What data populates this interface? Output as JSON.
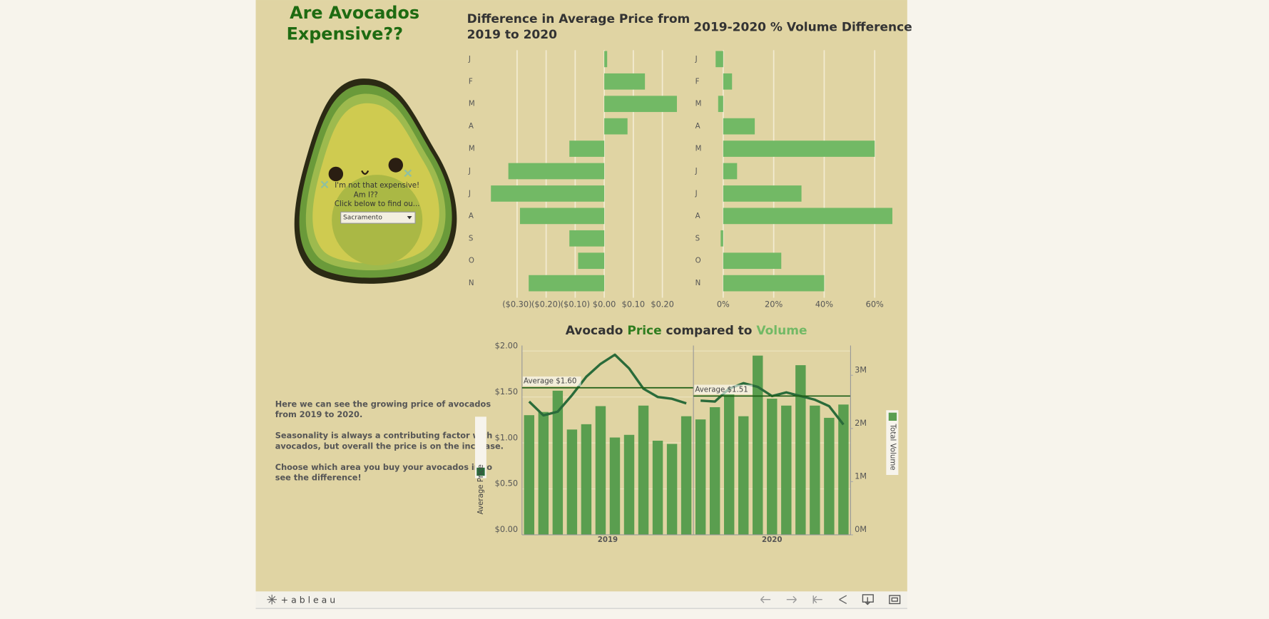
{
  "title": {
    "lines": [
      "Are Avocados",
      "Expensive??"
    ]
  },
  "avocado": {
    "speech": [
      "I'm not that expensive!",
      "Am I??",
      "Click below to find ou..."
    ],
    "dropdown": "Sacramento"
  },
  "notes": [
    [
      "Here we can see the growing price of avocados",
      "from 2019 to 2020."
    ],
    [
      "Seasonality is always a contributing factor with",
      "avocados, but overall the price is on the increase."
    ],
    [
      "Choose which area you buy your avocados in to",
      "see the difference!"
    ]
  ],
  "footer": {
    "logo": "+ a b l e a u"
  },
  "chart_data": [
    {
      "type": "bar",
      "orientation": "horizontal",
      "title": [
        "Difference in Average Price from",
        "2019 to 2020"
      ],
      "categories": [
        "J",
        "F",
        "M",
        "A",
        "M",
        "J",
        "J",
        "A",
        "S",
        "O",
        "N"
      ],
      "values": [
        0.01,
        0.14,
        0.25,
        0.08,
        -0.12,
        -0.33,
        -0.39,
        -0.29,
        -0.12,
        -0.09,
        -0.26
      ],
      "color": "#72b965",
      "grid": true,
      "xlim": [
        -0.4,
        0.26
      ],
      "xticks": [
        {
          "value": -0.3,
          "label": "($0.30)"
        },
        {
          "value": -0.2,
          "label": "($0.20)"
        },
        {
          "value": -0.1,
          "label": "($0.10)"
        },
        {
          "value": 0,
          "label": "$0.00"
        },
        {
          "value": 0.1,
          "label": "$0.10"
        },
        {
          "value": 0.2,
          "label": "$0.20"
        }
      ]
    },
    {
      "type": "bar",
      "orientation": "horizontal",
      "title": [
        "2019-2020 % Volume Difference"
      ],
      "categories": [
        "J",
        "F",
        "M",
        "A",
        "M",
        "J",
        "J",
        "A",
        "S",
        "O",
        "N"
      ],
      "values": [
        -3,
        3.5,
        -2,
        12.5,
        60,
        5.5,
        31,
        67,
        -1,
        23,
        40
      ],
      "color": "#72b965",
      "grid": true,
      "xlim": [
        -5,
        70
      ],
      "xticks": [
        {
          "value": 0,
          "label": "0%"
        },
        {
          "value": 20,
          "label": "20%"
        },
        {
          "value": 40,
          "label": "40%"
        },
        {
          "value": 60,
          "label": "60%"
        }
      ]
    },
    {
      "type": "combo",
      "title": [
        "Avocado",
        "Price",
        "compared to",
        "Volume"
      ],
      "title_colors": [
        "#333333",
        "#2f7d1f",
        "#333333",
        "#72b965"
      ],
      "series": [
        {
          "name": "Average Price",
          "color": "#2a6b3a",
          "axis": "y"
        },
        {
          "name": "Total Volume",
          "color": "#5a9e4f",
          "axis": "y2"
        }
      ],
      "panes": [
        {
          "label": "2019",
          "volume": [
            2250000,
            2310000,
            2710000,
            1980000,
            2080000,
            2420000,
            1830000,
            1880000,
            2430000,
            1770000,
            1710000,
            2230000
          ],
          "price": [
            1.45,
            1.3,
            1.34,
            1.52,
            1.72,
            1.86,
            1.96,
            1.81,
            1.59,
            1.5,
            1.48,
            1.43
          ],
          "average": {
            "value": 1.6,
            "label": "Average $1.60"
          }
        },
        {
          "label": "2020",
          "volume": [
            2170000,
            2400000,
            2640000,
            2230000,
            3370000,
            2560000,
            2430000,
            3190000,
            2430000,
            2200000,
            2450000
          ],
          "price": [
            1.46,
            1.45,
            1.59,
            1.65,
            1.61,
            1.51,
            1.55,
            1.51,
            1.47,
            1.4,
            1.2
          ],
          "average": {
            "value": 1.51,
            "label": "Average $1.51"
          }
        }
      ],
      "grid": true,
      "ylim": [
        0,
        2.06
      ],
      "yticks": [
        {
          "value": 0,
          "label": "$0.00"
        },
        {
          "value": 0.5,
          "label": "$0.50"
        },
        {
          "value": 1,
          "label": "$1.00"
        },
        {
          "value": 1.5,
          "label": "$1.50"
        },
        {
          "value": 2,
          "label": "$2.00"
        }
      ],
      "y2lim": [
        0,
        3560000
      ],
      "y2ticks": [
        {
          "value": 0,
          "label": "0M"
        },
        {
          "value": 1000000,
          "label": "1M"
        },
        {
          "value": 2000000,
          "label": "2M"
        },
        {
          "value": 3000000,
          "label": "3M"
        }
      ]
    }
  ]
}
